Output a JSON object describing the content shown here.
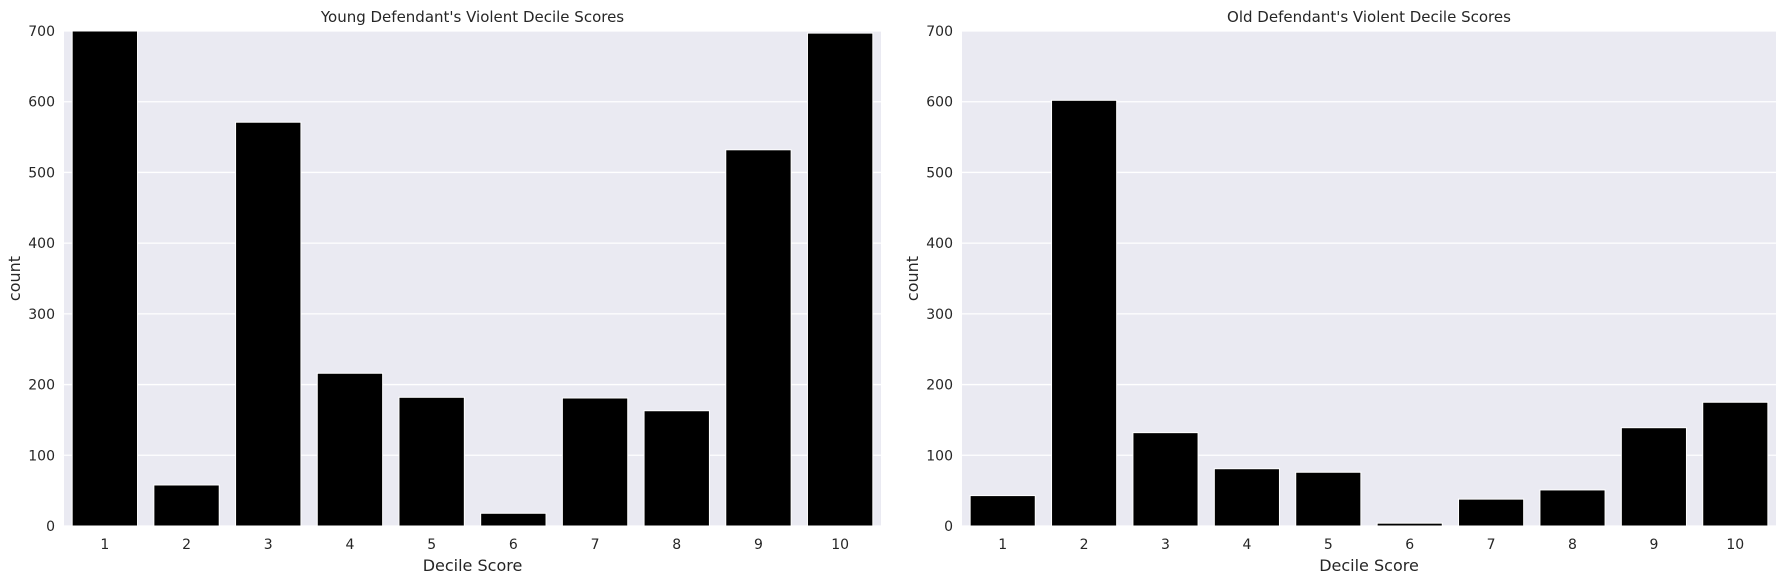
{
  "chart_data": [
    {
      "type": "bar",
      "title": "Young Defendant's Violent Decile Scores",
      "xlabel": "Decile Score",
      "ylabel": "count",
      "categories": [
        "1",
        "2",
        "3",
        "4",
        "5",
        "6",
        "7",
        "8",
        "9",
        "10"
      ],
      "values": [
        700,
        58,
        571,
        216,
        182,
        18,
        181,
        163,
        532,
        697
      ],
      "ylim": [
        0,
        700
      ],
      "yticks": [
        0,
        100,
        200,
        300,
        400,
        500,
        600,
        700
      ],
      "grid": true,
      "bar_color": "#000000",
      "background_color": "#eaeaf2",
      "grid_color": "#ffffff"
    },
    {
      "type": "bar",
      "title": "Old Defendant's Violent Decile Scores",
      "xlabel": "Decile Score",
      "ylabel": "count",
      "categories": [
        "1",
        "2",
        "3",
        "4",
        "5",
        "6",
        "7",
        "8",
        "9",
        "10"
      ],
      "values": [
        43,
        602,
        132,
        81,
        76,
        4,
        38,
        51,
        139,
        175
      ],
      "ylim": [
        0,
        700
      ],
      "yticks": [
        0,
        100,
        200,
        300,
        400,
        500,
        600,
        700
      ],
      "grid": true,
      "bar_color": "#000000",
      "background_color": "#eaeaf2",
      "grid_color": "#ffffff"
    }
  ]
}
